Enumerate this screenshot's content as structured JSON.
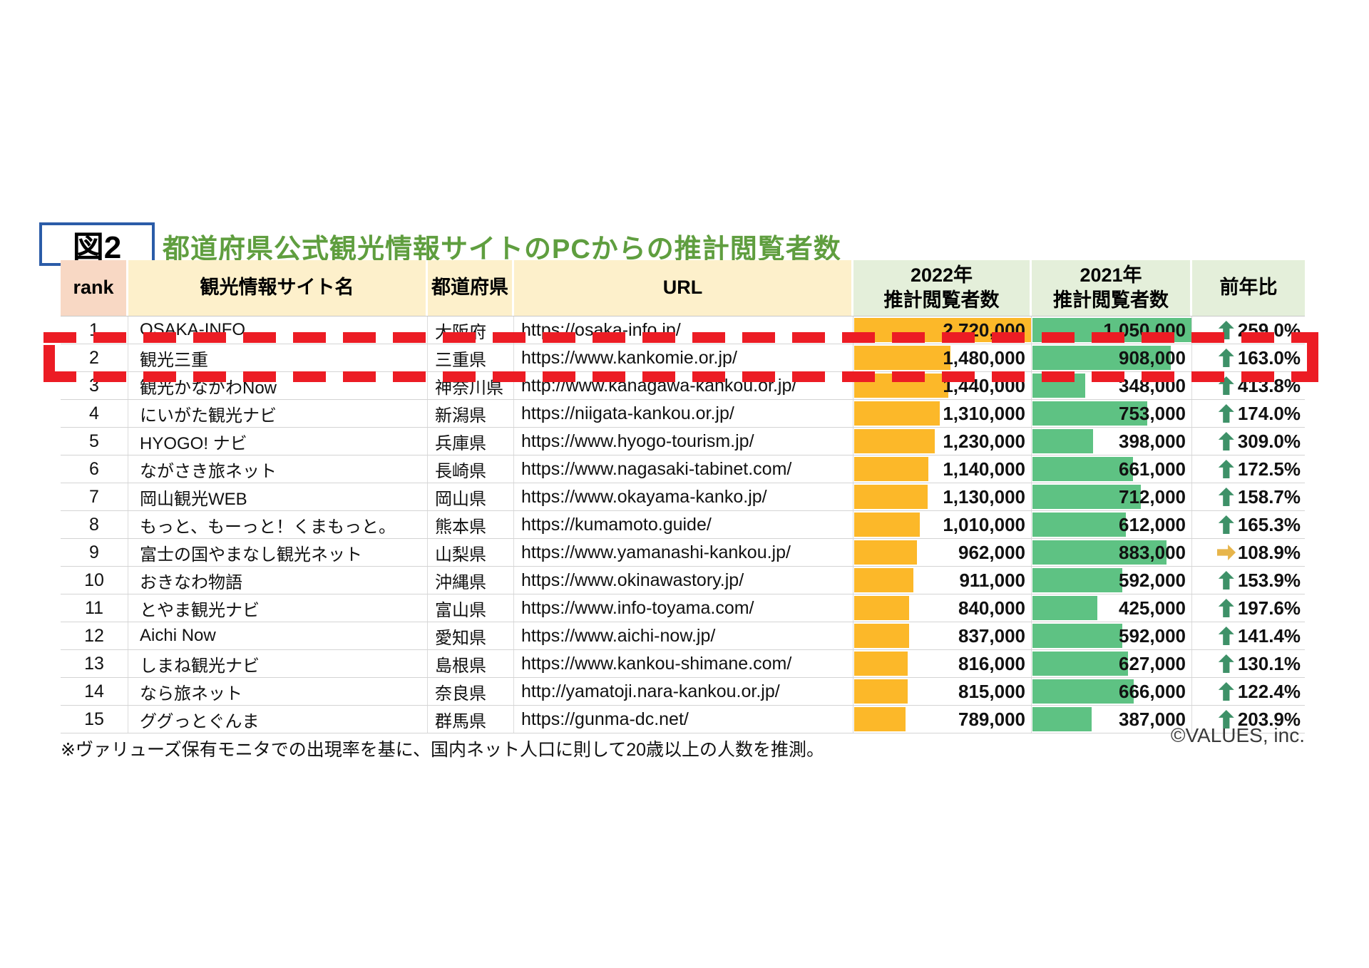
{
  "figure": {
    "label": "図2",
    "title": "都道府県公式観光情報サイトのPCからの推計閲覧者数"
  },
  "table": {
    "headers": {
      "rank": "rank",
      "site": "観光情報サイト名",
      "pref": "都道府県",
      "url": "URL",
      "y2022_line1": "2022年",
      "y2022_line2": "推計閲覧者数",
      "y2021_line1": "2021年",
      "y2021_line2": "推計閲覧者数",
      "yoy": "前年比"
    },
    "bar_max_2022": 2720000,
    "bar_max_2021": 1050000,
    "rows": [
      {
        "rank": "1",
        "site": "OSAKA-INFO",
        "pref": "大阪府",
        "url": "https://osaka-info.jp/",
        "v2022": "2,720,000",
        "n2022": 2720000,
        "v2021": "1,050,000",
        "n2021": 1050000,
        "yoy": "259.0%",
        "trend": "up"
      },
      {
        "rank": "2",
        "site": "観光三重",
        "pref": "三重県",
        "url": "https://www.kankomie.or.jp/",
        "v2022": "1,480,000",
        "n2022": 1480000,
        "v2021": "908,000",
        "n2021": 908000,
        "yoy": "163.0%",
        "trend": "up"
      },
      {
        "rank": "3",
        "site": "観光かながわNow",
        "pref": "神奈川県",
        "url": "http://www.kanagawa-kankou.or.jp/",
        "v2022": "1,440,000",
        "n2022": 1440000,
        "v2021": "348,000",
        "n2021": 348000,
        "yoy": "413.8%",
        "trend": "up"
      },
      {
        "rank": "4",
        "site": "にいがた観光ナビ",
        "pref": "新潟県",
        "url": "https://niigata-kankou.or.jp/",
        "v2022": "1,310,000",
        "n2022": 1310000,
        "v2021": "753,000",
        "n2021": 753000,
        "yoy": "174.0%",
        "trend": "up"
      },
      {
        "rank": "5",
        "site": "HYOGO! ナビ",
        "pref": "兵庫県",
        "url": "https://www.hyogo-tourism.jp/",
        "v2022": "1,230,000",
        "n2022": 1230000,
        "v2021": "398,000",
        "n2021": 398000,
        "yoy": "309.0%",
        "trend": "up"
      },
      {
        "rank": "6",
        "site": "ながさき旅ネット",
        "pref": "長崎県",
        "url": "https://www.nagasaki-tabinet.com/",
        "v2022": "1,140,000",
        "n2022": 1140000,
        "v2021": "661,000",
        "n2021": 661000,
        "yoy": "172.5%",
        "trend": "up"
      },
      {
        "rank": "7",
        "site": "岡山観光WEB",
        "pref": "岡山県",
        "url": "https://www.okayama-kanko.jp/",
        "v2022": "1,130,000",
        "n2022": 1130000,
        "v2021": "712,000",
        "n2021": 712000,
        "yoy": "158.7%",
        "trend": "up"
      },
      {
        "rank": "8",
        "site": "もっと、もーっと！くまもっと。",
        "pref": "熊本県",
        "url": "https://kumamoto.guide/",
        "v2022": "1,010,000",
        "n2022": 1010000,
        "v2021": "612,000",
        "n2021": 612000,
        "yoy": "165.3%",
        "trend": "up"
      },
      {
        "rank": "9",
        "site": "富士の国やまなし観光ネット",
        "pref": "山梨県",
        "url": "https://www.yamanashi-kankou.jp/",
        "v2022": "962,000",
        "n2022": 962000,
        "v2021": "883,000",
        "n2021": 883000,
        "yoy": "108.9%",
        "trend": "flat"
      },
      {
        "rank": "10",
        "site": "おきなわ物語",
        "pref": "沖縄県",
        "url": "https://www.okinawastory.jp/",
        "v2022": "911,000",
        "n2022": 911000,
        "v2021": "592,000",
        "n2021": 592000,
        "yoy": "153.9%",
        "trend": "up"
      },
      {
        "rank": "11",
        "site": "とやま観光ナビ",
        "pref": "富山県",
        "url": "https://www.info-toyama.com/",
        "v2022": "840,000",
        "n2022": 840000,
        "v2021": "425,000",
        "n2021": 425000,
        "yoy": "197.6%",
        "trend": "up"
      },
      {
        "rank": "12",
        "site": "Aichi Now",
        "pref": "愛知県",
        "url": "https://www.aichi-now.jp/",
        "v2022": "837,000",
        "n2022": 837000,
        "v2021": "592,000",
        "n2021": 592000,
        "yoy": "141.4%",
        "trend": "up"
      },
      {
        "rank": "13",
        "site": "しまね観光ナビ",
        "pref": "島根県",
        "url": "https://www.kankou-shimane.com/",
        "v2022": "816,000",
        "n2022": 816000,
        "v2021": "627,000",
        "n2021": 627000,
        "yoy": "130.1%",
        "trend": "up"
      },
      {
        "rank": "14",
        "site": "なら旅ネット",
        "pref": "奈良県",
        "url": "http://yamatoji.nara-kankou.or.jp/",
        "v2022": "815,000",
        "n2022": 815000,
        "v2021": "666,000",
        "n2021": 666000,
        "yoy": "122.4%",
        "trend": "up"
      },
      {
        "rank": "15",
        "site": "ググっとぐんま",
        "pref": "群馬県",
        "url": "https://gunma-dc.net/",
        "v2022": "789,000",
        "n2022": 789000,
        "v2021": "387,000",
        "n2021": 387000,
        "yoy": "203.9%",
        "trend": "up"
      }
    ]
  },
  "highlight": {
    "highlighted_rank": "2"
  },
  "footnote": "※ヴァリューズ保有モニタでの出現率を基に、国内ネット人口に則して20歳以上の人数を推測。",
  "copyright": "©VALUES, inc.",
  "colors": {
    "title_green": "#5f9e3f",
    "figure_box_border": "#2b5ca8",
    "bar_2022_orange": "#fcb829",
    "bar_2021_green": "#5ec283",
    "up_arrow_green": "#3e9168",
    "flat_arrow_yellow": "#e7b54b",
    "highlight_red": "#ec1c24",
    "header_rank_bg": "#f8d8c4",
    "header_cream_bg": "#fdf0cb",
    "header_green_bg": "#e4efda"
  }
}
